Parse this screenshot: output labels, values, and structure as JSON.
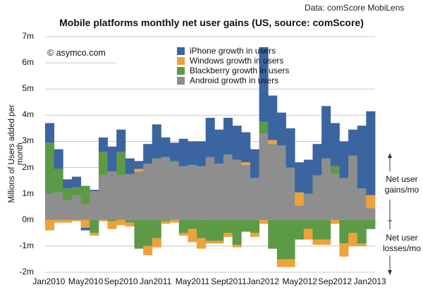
{
  "header": {
    "source_note": "Data: comScore MobiLens",
    "copyright": "© asymco.com"
  },
  "side_notes": {
    "gains": "Net user gains/mo",
    "losses": "Net user losses/mo"
  },
  "colors": {
    "iphone": "#3b65a0",
    "windows": "#eea23a",
    "blackberry": "#5c9a46",
    "android": "#8e8e8e",
    "grid": "#c8c8c8"
  },
  "chart_data": {
    "type": "bar",
    "stacked": true,
    "title": "Mobile platforms monthly net user gains (US, source: comScore)",
    "xlabel": "",
    "ylabel": "Millions of Users added per month",
    "ylim": [
      -2,
      7
    ],
    "grid": true,
    "legend_position": "top-center",
    "y_ticks": [
      "7m",
      "6m",
      "5m",
      "4m",
      "3m",
      "2m",
      "1m",
      "0m",
      "-1m",
      "-2m"
    ],
    "y_tick_values": [
      7,
      6,
      5,
      4,
      3,
      2,
      1,
      0,
      -1,
      -2
    ],
    "x_tick_labels": [
      "Jan2010",
      "May2010",
      "Sep2010",
      "Jan2011",
      "May2011",
      "Sept2011",
      "Jan2012",
      "May2012",
      "Sep2012",
      "Jan2013"
    ],
    "x_tick_indices": [
      0,
      4,
      8,
      12,
      16,
      20,
      24,
      28,
      32,
      36
    ],
    "categories": [
      "Jan2010",
      "Feb2010",
      "Mar2010",
      "Apr2010",
      "May2010",
      "Jun2010",
      "Jul2010",
      "Aug2010",
      "Sep2010",
      "Oct2010",
      "Nov2010",
      "Dec2010",
      "Jan2011",
      "Feb2011",
      "Mar2011",
      "Apr2011",
      "May2011",
      "Jun2011",
      "Jul2011",
      "Aug2011",
      "Sept2011",
      "Oct2011",
      "Nov2011",
      "Dec2011",
      "Jan2012",
      "Feb2012",
      "Mar2012",
      "Apr2012",
      "May2012",
      "Jun2012",
      "Jul2012",
      "Aug2012",
      "Sep2012",
      "Oct2012",
      "Nov2012",
      "Dec2012",
      "Jan2013"
    ],
    "series": [
      {
        "name": "Android growth in users",
        "key": "android",
        "values": [
          1.0,
          1.05,
          0.75,
          0.95,
          0.6,
          1.1,
          1.7,
          1.85,
          1.7,
          1.75,
          1.85,
          2.15,
          2.35,
          2.4,
          2.2,
          2.05,
          2.1,
          2.05,
          2.4,
          2.15,
          2.5,
          2.3,
          2.1,
          1.6,
          3.3,
          2.9,
          2.85,
          2.0,
          0.55,
          1.0,
          1.7,
          2.35,
          1.75,
          1.6,
          2.45,
          1.2,
          0.45
        ]
      },
      {
        "name": "Blackberry growth in users",
        "key": "blackberry",
        "values": [
          1.95,
          0.9,
          0.45,
          0.3,
          0.7,
          -0.5,
          0.9,
          -0.05,
          0.9,
          -0.1,
          -1.1,
          -1.0,
          -0.7,
          -0.05,
          0.05,
          -0.5,
          -0.35,
          -0.7,
          -0.8,
          -0.8,
          -0.5,
          -0.95,
          -0.45,
          -0.5,
          0.45,
          -1.1,
          -1.5,
          -1.5,
          -0.75,
          -0.35,
          -0.75,
          -0.75,
          0.3,
          -0.9,
          -0.5,
          -0.9,
          -0.35
        ]
      },
      {
        "name": "Windows growth in users",
        "key": "windows",
        "values": [
          -0.4,
          -0.1,
          -0.1,
          -0.05,
          -0.3,
          -0.1,
          -0.05,
          -0.3,
          -0.2,
          -0.15,
          0.1,
          -0.35,
          -0.35,
          -0.1,
          -0.1,
          -0.1,
          -0.5,
          -0.4,
          -0.1,
          -0.1,
          -0.15,
          -0.1,
          0.1,
          -0.15,
          -0.15,
          0.15,
          -0.3,
          -0.3,
          0.5,
          -0.4,
          -0.2,
          -0.2,
          -0.15,
          -0.5,
          -0.5,
          -0.1,
          0.5
        ]
      },
      {
        "name": "iPhone growth in users",
        "key": "iphone",
        "values": [
          0.75,
          0.75,
          0.35,
          0.4,
          -0.1,
          0.05,
          0.55,
          0.95,
          0.85,
          0.6,
          0.3,
          0.75,
          1.3,
          0.75,
          0.7,
          1.05,
          0.9,
          0.95,
          1.5,
          1.3,
          1.4,
          1.3,
          1.15,
          1.1,
          2.85,
          1.7,
          1.25,
          1.5,
          1.15,
          1.3,
          1.2,
          2.0,
          1.65,
          1.4,
          1.0,
          2.4,
          3.2
        ]
      }
    ]
  }
}
